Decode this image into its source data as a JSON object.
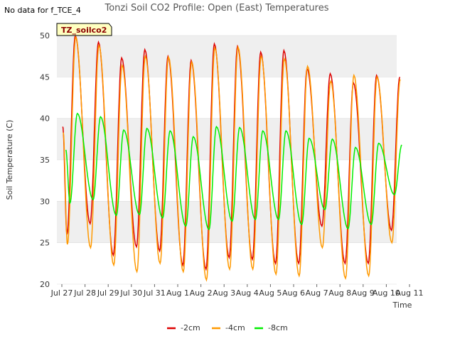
{
  "note": "No data for f_TCE_4",
  "chart_data": {
    "type": "line",
    "title": "Tonzi Soil CO2 Profile: Open (East) Temperatures",
    "xlabel": "Time",
    "ylabel": "Soil Temperature (C)",
    "ylim": [
      20,
      50
    ],
    "yticks": [
      20,
      25,
      30,
      35,
      40,
      45,
      50
    ],
    "xlim": [
      "2024-07-27",
      "2024-08-11"
    ],
    "xticks": [
      "Jul 27",
      "Jul 28",
      "Jul 29",
      "Jul 30",
      "Jul 31",
      "Aug 1",
      "Aug 2",
      "Aug 3",
      "Aug 4",
      "Aug 5",
      "Aug 6",
      "Aug 7",
      "Aug 8",
      "Aug 9",
      "Aug 10",
      "Aug 11"
    ],
    "grid": "horizontal bands",
    "tag_label": "TZ_soilco2",
    "legend_position": "bottom",
    "series": [
      {
        "name": "-2cm",
        "color": "#dd0000",
        "days": [
          "07-27",
          "07-28",
          "07-29",
          "07-30",
          "07-31",
          "08-01",
          "08-02",
          "08-03",
          "08-04",
          "08-05",
          "08-06",
          "08-07",
          "08-08",
          "08-09",
          "08-10"
        ],
        "max": [
          50.0,
          49.2,
          47.3,
          48.3,
          47.5,
          47.0,
          49.0,
          48.7,
          48.0,
          48.2,
          46.0,
          45.4,
          44.3,
          45.2,
          45.0
        ],
        "min": [
          26.0,
          27.3,
          23.5,
          24.5,
          24.0,
          22.3,
          21.8,
          23.2,
          23.0,
          22.5,
          22.5,
          27.0,
          22.5,
          22.5,
          26.5
        ]
      },
      {
        "name": "-4cm",
        "color": "#ff9900",
        "days": [
          "07-27",
          "07-28",
          "07-29",
          "07-30",
          "07-31",
          "08-01",
          "08-02",
          "08-03",
          "08-04",
          "08-05",
          "08-06",
          "08-07",
          "08-08",
          "08-09",
          "08-10"
        ],
        "max": [
          49.8,
          48.8,
          46.4,
          47.5,
          47.4,
          46.8,
          48.5,
          48.6,
          47.5,
          47.2,
          46.3,
          44.5,
          45.2,
          45.0,
          44.7
        ],
        "min": [
          24.8,
          24.4,
          22.3,
          21.5,
          22.5,
          21.5,
          20.5,
          21.8,
          21.8,
          21.2,
          21.0,
          24.4,
          20.7,
          21.0,
          25.0
        ]
      },
      {
        "name": "-8cm",
        "color": "#00ee00",
        "days": [
          "07-27",
          "07-28",
          "07-29",
          "07-30",
          "07-31",
          "08-01",
          "08-02",
          "08-03",
          "08-04",
          "08-05",
          "08-06",
          "08-07",
          "08-08",
          "08-09",
          "08-10"
        ],
        "max": [
          40.6,
          40.2,
          38.6,
          38.8,
          38.5,
          37.8,
          39.0,
          38.9,
          38.5,
          38.5,
          37.6,
          37.5,
          36.5,
          37.0,
          36.8
        ],
        "min": [
          29.8,
          30.2,
          28.3,
          28.4,
          28.0,
          27.0,
          26.6,
          27.6,
          27.8,
          27.8,
          27.2,
          29.0,
          26.7,
          27.2,
          30.8
        ]
      }
    ]
  }
}
